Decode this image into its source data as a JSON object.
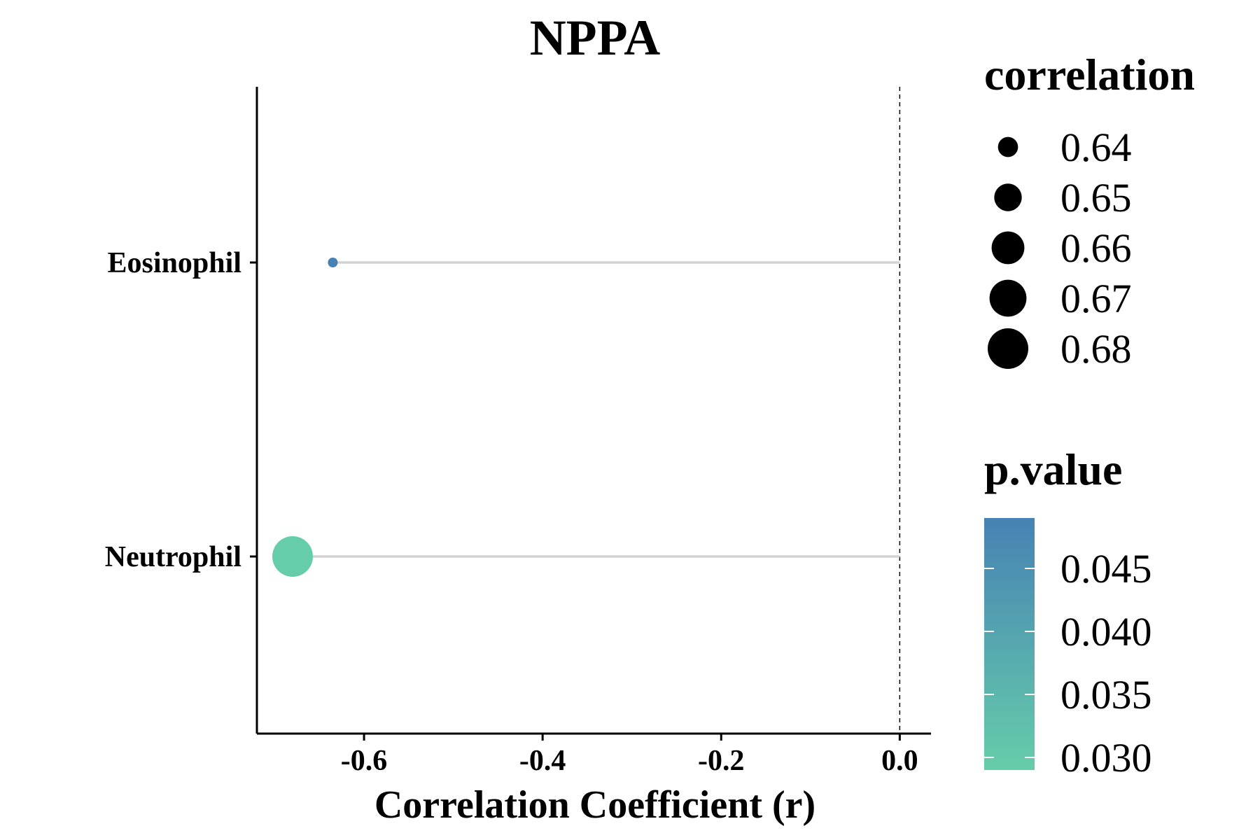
{
  "chart_data": {
    "type": "scatter",
    "title": "NPPA",
    "xlabel": "Correlation Coefficient (r)",
    "ylabel": "",
    "xlim": [
      -0.72,
      0.035
    ],
    "x_ticks": [
      {
        "value": -0.6,
        "label": "-0.6"
      },
      {
        "value": -0.4,
        "label": "-0.4"
      },
      {
        "value": -0.2,
        "label": "-0.2"
      },
      {
        "value": 0.0,
        "label": "0.0"
      }
    ],
    "reference_line_x": 0.0,
    "categories": [
      "Eosinophil",
      "Neutrophil"
    ],
    "points": [
      {
        "cell": "Eosinophil",
        "r": -0.635,
        "correlation": 0.635,
        "p_value": 0.049,
        "color": "#4682B4"
      },
      {
        "cell": "Neutrophil",
        "r": -0.68,
        "correlation": 0.68,
        "p_value": 0.029,
        "color": "#66CDAA"
      }
    ],
    "segment_color": "#D3D3D3",
    "size_legend": {
      "title": "correlation",
      "entries": [
        {
          "value": 0.64,
          "label": "0.64"
        },
        {
          "value": 0.65,
          "label": "0.65"
        },
        {
          "value": 0.66,
          "label": "0.66"
        },
        {
          "value": 0.67,
          "label": "0.67"
        },
        {
          "value": 0.68,
          "label": "0.68"
        }
      ]
    },
    "color_legend": {
      "title": "p.value",
      "low_color": "#66CDAA",
      "high_color": "#4682B4",
      "range": [
        0.029,
        0.049
      ],
      "ticks": [
        {
          "value": 0.045,
          "label": "0.045"
        },
        {
          "value": 0.04,
          "label": "0.040"
        },
        {
          "value": 0.035,
          "label": "0.035"
        },
        {
          "value": 0.03,
          "label": "0.030"
        }
      ]
    },
    "legend_position": "right",
    "grid": false
  }
}
